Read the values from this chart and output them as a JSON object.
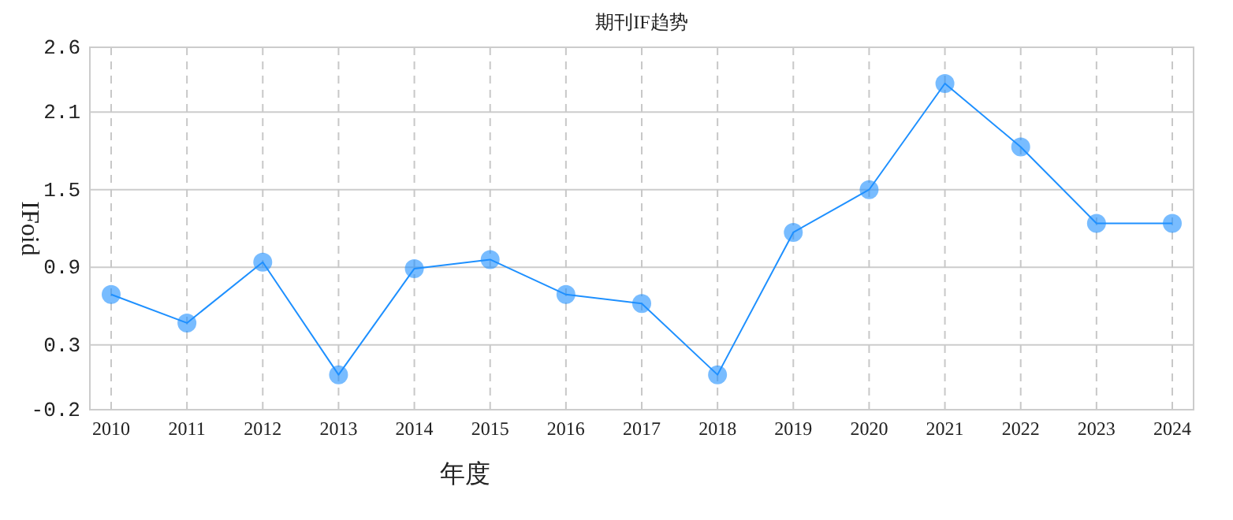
{
  "chart_data": {
    "type": "line",
    "title": "期刊IF趋势",
    "xlabel": "年度",
    "ylabel": "IFoid",
    "categories": [
      "2010",
      "2011",
      "2012",
      "2013",
      "2014",
      "2015",
      "2016",
      "2017",
      "2018",
      "2019",
      "2020",
      "2021",
      "2022",
      "2023",
      "2024"
    ],
    "series": [
      {
        "color": "#1e90ff",
        "values": [
          0.69,
          0.47,
          0.94,
          0.07,
          0.89,
          0.96,
          0.69,
          0.62,
          0.07,
          1.17,
          1.5,
          2.32,
          1.83,
          1.24,
          1.24
        ]
      }
    ],
    "ylim": [
      -0.2,
      2.6
    ],
    "yticks": [
      -0.2,
      0.3,
      0.9,
      1.5,
      2.1,
      2.6
    ],
    "grid": true,
    "marker": "circle",
    "line_style": "solid"
  }
}
